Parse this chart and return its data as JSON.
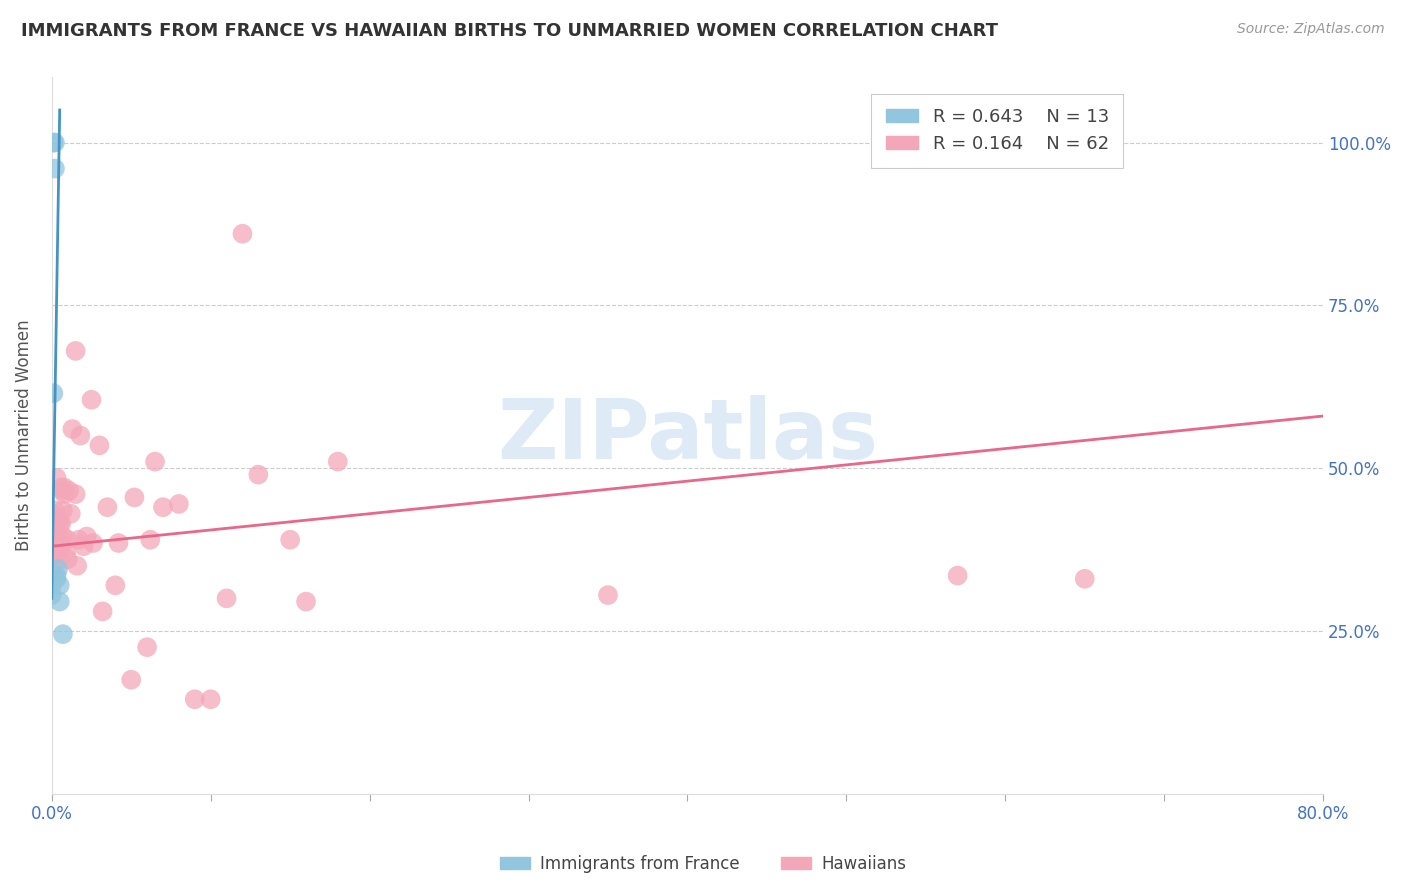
{
  "title": "IMMIGRANTS FROM FRANCE VS HAWAIIAN BIRTHS TO UNMARRIED WOMEN CORRELATION CHART",
  "source": "Source: ZipAtlas.com",
  "ylabel_left": "Births to Unmarried Women",
  "xlim": [
    0.0,
    0.8
  ],
  "ylim": [
    0.0,
    1.1
  ],
  "legend_blue_R": "0.643",
  "legend_blue_N": "13",
  "legend_pink_R": "0.164",
  "legend_pink_N": "62",
  "legend_blue_label": "Immigrants from France",
  "legend_pink_label": "Hawaiians",
  "blue_scatter_color": "#92c5de",
  "pink_scatter_color": "#f4a7b9",
  "blue_line_color": "#4393c3",
  "pink_line_color": "#e8678a",
  "blue_scatter_x": [
    0.0,
    0.0,
    0.001,
    0.001,
    0.001,
    0.002,
    0.002,
    0.003,
    0.003,
    0.004,
    0.005,
    0.005,
    0.007
  ],
  "blue_scatter_y": [
    0.305,
    0.32,
    0.33,
    0.615,
    1.0,
    1.0,
    0.96,
    0.33,
    0.335,
    0.345,
    0.32,
    0.295,
    0.245
  ],
  "pink_scatter_x": [
    0.0,
    0.001,
    0.001,
    0.002,
    0.002,
    0.002,
    0.003,
    0.003,
    0.003,
    0.004,
    0.004,
    0.004,
    0.005,
    0.005,
    0.005,
    0.005,
    0.006,
    0.006,
    0.006,
    0.007,
    0.007,
    0.007,
    0.008,
    0.008,
    0.009,
    0.01,
    0.01,
    0.011,
    0.012,
    0.013,
    0.015,
    0.015,
    0.016,
    0.017,
    0.018,
    0.02,
    0.022,
    0.025,
    0.026,
    0.03,
    0.032,
    0.035,
    0.04,
    0.042,
    0.05,
    0.052,
    0.06,
    0.062,
    0.065,
    0.07,
    0.08,
    0.09,
    0.1,
    0.11,
    0.12,
    0.13,
    0.15,
    0.16,
    0.18,
    0.35,
    0.57,
    0.65
  ],
  "pink_scatter_y": [
    0.34,
    0.365,
    0.385,
    0.395,
    0.415,
    0.435,
    0.37,
    0.425,
    0.485,
    0.38,
    0.395,
    0.42,
    0.36,
    0.385,
    0.395,
    0.415,
    0.38,
    0.415,
    0.47,
    0.395,
    0.435,
    0.465,
    0.46,
    0.47,
    0.37,
    0.36,
    0.39,
    0.465,
    0.43,
    0.56,
    0.46,
    0.68,
    0.35,
    0.39,
    0.55,
    0.38,
    0.395,
    0.605,
    0.385,
    0.535,
    0.28,
    0.44,
    0.32,
    0.385,
    0.175,
    0.455,
    0.225,
    0.39,
    0.51,
    0.44,
    0.445,
    0.145,
    0.145,
    0.3,
    0.86,
    0.49,
    0.39,
    0.295,
    0.51,
    0.305,
    0.335,
    0.33
  ],
  "pink_line_x0": 0.0,
  "pink_line_y0": 0.38,
  "pink_line_x1": 0.8,
  "pink_line_y1": 0.58,
  "blue_line_x0": 0.0,
  "blue_line_y0": 0.3,
  "blue_line_x1": 0.005,
  "blue_line_y1": 1.05,
  "watermark_text": "ZIPatlas",
  "watermark_color": "#c8dff0",
  "background_color": "#ffffff",
  "grid_color": "#cccccc",
  "title_color": "#333333",
  "axis_label_color": "#555555",
  "tick_label_color": "#4472c4",
  "source_color": "#999999"
}
